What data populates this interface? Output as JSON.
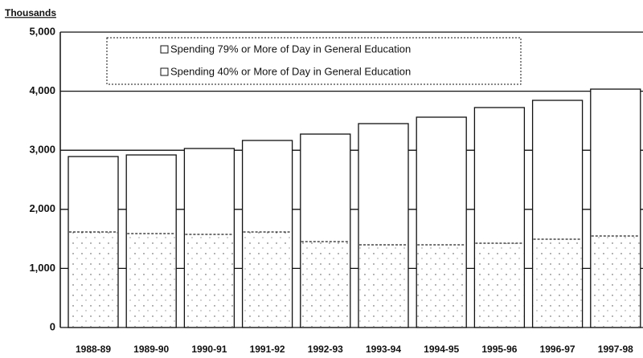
{
  "chart_data": {
    "type": "bar",
    "y_label": "Thousands",
    "categories": [
      "1988-89",
      "1989-90",
      "1990-91",
      "1991-92",
      "1992-93",
      "1993-94",
      "1994-95",
      "1995-96",
      "1996-97",
      "1997-98"
    ],
    "series": [
      {
        "name": "Spending 79% or More of Day in General Education",
        "color": "#ffffff",
        "values": [
          1617,
          1590,
          1576,
          1617,
          1454,
          1399,
          1399,
          1427,
          1495,
          1549
        ]
      },
      {
        "name": "Spending 40% or More of Day in General Education",
        "color": "#ffffff",
        "values": [
          2894,
          2921,
          3030,
          3166,
          3274,
          3451,
          3560,
          3723,
          3845,
          4035
        ]
      }
    ],
    "ylim": [
      0,
      5000
    ],
    "yticks": [
      0,
      {
        "value": 1000,
        "label": "1,000"
      },
      {
        "value": 2000,
        "label": "2,000"
      },
      {
        "value": 3000,
        "label": "3,000"
      },
      {
        "value": 4000,
        "label": "4,000"
      },
      {
        "value": 5000,
        "label": "5,000"
      }
    ],
    "grid": true,
    "legend": "top"
  }
}
